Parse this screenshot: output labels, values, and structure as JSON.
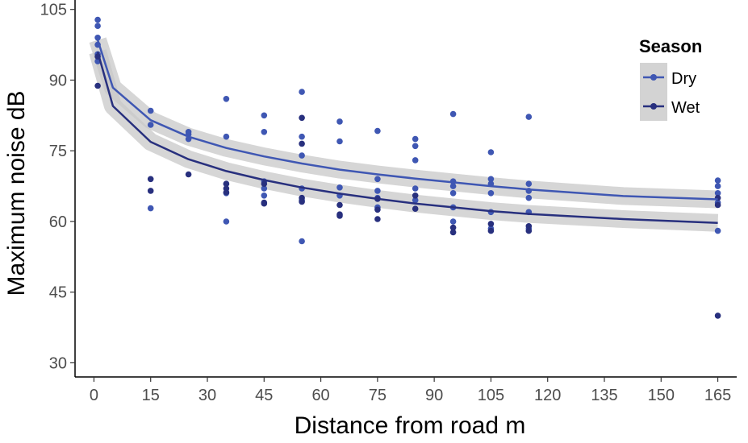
{
  "chart_data": {
    "type": "scatter",
    "xlabel": "Distance from road m",
    "ylabel": "Maximum noise dB",
    "xlim": [
      -5,
      170
    ],
    "ylim": [
      27,
      107
    ],
    "xticks": [
      "0",
      "15",
      "30",
      "45",
      "60",
      "75",
      "90",
      "105",
      "120",
      "135",
      "150",
      "165"
    ],
    "yticks": [
      "30",
      "45",
      "60",
      "75",
      "90",
      "105"
    ],
    "grid": false,
    "legend": {
      "title": "Season",
      "position": "top-right"
    },
    "series": [
      {
        "name": "Dry",
        "color": "#3f57b3",
        "points": [
          [
            1,
            102.8
          ],
          [
            1,
            101.5
          ],
          [
            1,
            99
          ],
          [
            1,
            97.5
          ],
          [
            1,
            95.5
          ],
          [
            1,
            94
          ],
          [
            15,
            83.5
          ],
          [
            15,
            80.5
          ],
          [
            15,
            62.8
          ],
          [
            25,
            79
          ],
          [
            25,
            78.5
          ],
          [
            25,
            77.5
          ],
          [
            35,
            86
          ],
          [
            35,
            78
          ],
          [
            35,
            68
          ],
          [
            35,
            66
          ],
          [
            35,
            60
          ],
          [
            45,
            82.5
          ],
          [
            45,
            79
          ],
          [
            45,
            68.5
          ],
          [
            45,
            67
          ],
          [
            45,
            65.5
          ],
          [
            55,
            87.5
          ],
          [
            55,
            78
          ],
          [
            55,
            74
          ],
          [
            55,
            67
          ],
          [
            55,
            64.5
          ],
          [
            55,
            55.8
          ],
          [
            65,
            81.2
          ],
          [
            65,
            77
          ],
          [
            65,
            67.2
          ],
          [
            65,
            65.5
          ],
          [
            75,
            79.2
          ],
          [
            75,
            69
          ],
          [
            75,
            66.5
          ],
          [
            75,
            65
          ],
          [
            75,
            63
          ],
          [
            85,
            77.5
          ],
          [
            85,
            76
          ],
          [
            85,
            73
          ],
          [
            85,
            67
          ],
          [
            85,
            64.5
          ],
          [
            95,
            82.8
          ],
          [
            95,
            68.5
          ],
          [
            95,
            67.5
          ],
          [
            95,
            66
          ],
          [
            95,
            63
          ],
          [
            95,
            60
          ],
          [
            105,
            74.7
          ],
          [
            105,
            69
          ],
          [
            105,
            68
          ],
          [
            105,
            66
          ],
          [
            105,
            62
          ],
          [
            105,
            58.5
          ],
          [
            115,
            82.2
          ],
          [
            115,
            68
          ],
          [
            115,
            66.5
          ],
          [
            115,
            65
          ],
          [
            115,
            62
          ],
          [
            115,
            58.5
          ],
          [
            165,
            68.7
          ],
          [
            165,
            67.5
          ],
          [
            165,
            66
          ],
          [
            165,
            64
          ],
          [
            165,
            58
          ]
        ],
        "fit": [
          [
            1,
            98.5
          ],
          [
            5,
            88.4
          ],
          [
            15,
            81.5
          ],
          [
            25,
            78
          ],
          [
            35,
            75.6
          ],
          [
            45,
            73.8
          ],
          [
            55,
            72.3
          ],
          [
            65,
            71
          ],
          [
            75,
            70
          ],
          [
            85,
            69.1
          ],
          [
            95,
            68.3
          ],
          [
            105,
            67.5
          ],
          [
            115,
            66.8
          ],
          [
            140,
            65.4
          ],
          [
            165,
            64.7
          ]
        ]
      },
      {
        "name": "Wet",
        "color": "#28307e",
        "points": [
          [
            1,
            95
          ],
          [
            1,
            88.8
          ],
          [
            15,
            69
          ],
          [
            15,
            66.5
          ],
          [
            25,
            70
          ],
          [
            35,
            68
          ],
          [
            35,
            67
          ],
          [
            35,
            66.2
          ],
          [
            45,
            68
          ],
          [
            45,
            64
          ],
          [
            45,
            63.8
          ],
          [
            55,
            82
          ],
          [
            55,
            76.5
          ],
          [
            55,
            65
          ],
          [
            55,
            64.2
          ],
          [
            65,
            63.5
          ],
          [
            65,
            61.5
          ],
          [
            65,
            61.2
          ],
          [
            75,
            64.8
          ],
          [
            75,
            62.5
          ],
          [
            75,
            60.5
          ],
          [
            85,
            65.5
          ],
          [
            85,
            62.7
          ],
          [
            95,
            58.7
          ],
          [
            95,
            57.7
          ],
          [
            105,
            59.5
          ],
          [
            105,
            58
          ],
          [
            115,
            59
          ],
          [
            115,
            58
          ],
          [
            165,
            65
          ],
          [
            165,
            63.5
          ],
          [
            165,
            40
          ]
        ],
        "fit": [
          [
            1,
            96
          ],
          [
            5,
            84.5
          ],
          [
            15,
            76.9
          ],
          [
            25,
            73.2
          ],
          [
            35,
            70.7
          ],
          [
            45,
            68.8
          ],
          [
            55,
            67.2
          ],
          [
            65,
            65.9
          ],
          [
            75,
            64.8
          ],
          [
            85,
            63.8
          ],
          [
            95,
            63
          ],
          [
            105,
            62.2
          ],
          [
            115,
            61.6
          ],
          [
            140,
            60.5
          ],
          [
            165,
            59.7
          ]
        ]
      }
    ]
  }
}
